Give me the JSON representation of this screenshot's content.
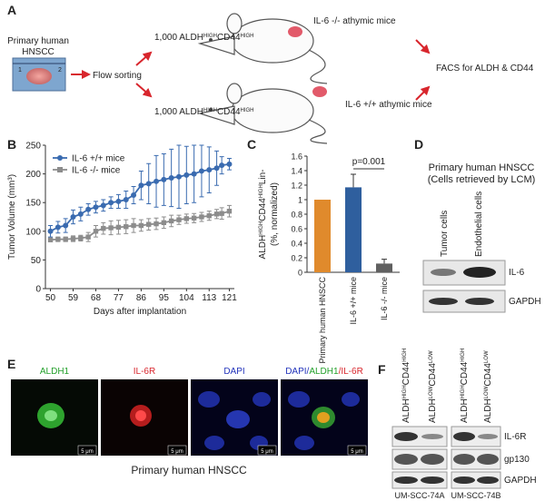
{
  "panel_labels": [
    "A",
    "B",
    "C",
    "D",
    "E",
    "F"
  ],
  "diagram": {
    "tumor_label": [
      "Primary human",
      "HNSCC"
    ],
    "ruler_ticks": [
      "1",
      "2"
    ],
    "step": "Flow sorting",
    "sorted_cells": [
      "1,000 ALDH",
      "HIGH",
      "CD44",
      "HIGH"
    ],
    "mice_knockout": "IL-6 -/- athymic mice",
    "mice_wildtype": "IL-6 +/+ athymic mice",
    "readout": "FACS for ALDH & CD44"
  },
  "chart_data": [
    {
      "type": "line",
      "xlabel": "Days after implantation",
      "ylabel": "Tumor Volume (mm³)",
      "x": [
        50,
        53,
        56,
        59,
        62,
        65,
        68,
        71,
        74,
        77,
        80,
        83,
        86,
        89,
        92,
        95,
        98,
        101,
        104,
        107,
        110,
        113,
        116,
        118,
        121
      ],
      "series": [
        {
          "name": "IL-6 +/+ mice",
          "color": "#3a6bb0",
          "marker": "circle",
          "values": [
            100,
            107,
            110,
            125,
            130,
            138,
            142,
            145,
            150,
            152,
            155,
            163,
            180,
            183,
            187,
            190,
            193,
            195,
            198,
            200,
            205,
            207,
            210,
            215,
            217
          ],
          "errors": [
            10,
            10,
            12,
            12,
            12,
            10,
            10,
            10,
            10,
            12,
            15,
            15,
            25,
            35,
            45,
            45,
            50,
            55,
            50,
            50,
            45,
            40,
            30,
            15,
            10
          ]
        },
        {
          "name": "IL-6 -/- mice",
          "color": "#8c8c8c",
          "marker": "square",
          "values": [
            85,
            86,
            86,
            87,
            88,
            90,
            100,
            105,
            106,
            107,
            108,
            110,
            110,
            112,
            113,
            115,
            118,
            120,
            122,
            123,
            125,
            127,
            130,
            131,
            135
          ],
          "errors": [
            3,
            4,
            4,
            5,
            5,
            8,
            10,
            10,
            12,
            12,
            12,
            12,
            10,
            10,
            10,
            10,
            10,
            8,
            8,
            8,
            8,
            8,
            8,
            10,
            10
          ]
        }
      ],
      "xlim": [
        48,
        123
      ],
      "xticks": [
        50,
        59,
        68,
        77,
        86,
        95,
        104,
        113,
        121
      ],
      "ylim": [
        0,
        250
      ],
      "yticks": [
        0,
        50,
        100,
        150,
        200,
        250
      ],
      "grid": false,
      "legend": "top-left"
    },
    {
      "type": "bar",
      "ylabel": [
        "ALDH",
        "HIGH",
        "CD44",
        "HIGH",
        "Lin-"
      ],
      "ylabel2": "(%, normalized)",
      "categories": [
        "Primary human HNSCC",
        "IL-6 +/+ mice",
        "IL-6 -/- mice"
      ],
      "values": [
        1.0,
        1.17,
        0.12
      ],
      "errors": [
        0,
        0.18,
        0.06
      ],
      "colors": [
        "#e08a2c",
        "#2f5f9e",
        "#606060"
      ],
      "annotation": "p=0.001",
      "ylim": [
        0,
        1.6
      ],
      "yticks": [
        0,
        0.2,
        0.4,
        0.6,
        0.8,
        1,
        1.2,
        1.4,
        1.6
      ],
      "grid": false
    }
  ],
  "blot_d": {
    "title": "Primary human HNSCC",
    "subtitle": "(Cells retrieved by LCM)",
    "lanes": [
      "Tumor cells",
      "Endothelial cells"
    ],
    "rows": [
      "IL-6",
      "GAPDH"
    ]
  },
  "images_e": {
    "channels": [
      "ALDH1",
      "IL-6R",
      "DAPI"
    ],
    "merge": [
      "DAPI/",
      "ALDH1",
      "/IL-6R"
    ],
    "scale_bar": "5 μm",
    "caption": "Primary human HNSCC"
  },
  "blot_f": {
    "lanes": [
      [
        "ALDH",
        "HIGH",
        "CD44",
        "HIGH"
      ],
      [
        "ALDH",
        "LOW",
        "CD44",
        "LOW"
      ],
      [
        "ALDH",
        "HIGH",
        "CD44",
        "HIGH"
      ],
      [
        "ALDH",
        "LOW",
        "CD44",
        "LOW"
      ]
    ],
    "rows": [
      "IL-6R",
      "gp130",
      "GAPDH"
    ],
    "cell_lines": [
      "UM-SCC-74A",
      "UM-SCC-74B"
    ]
  }
}
